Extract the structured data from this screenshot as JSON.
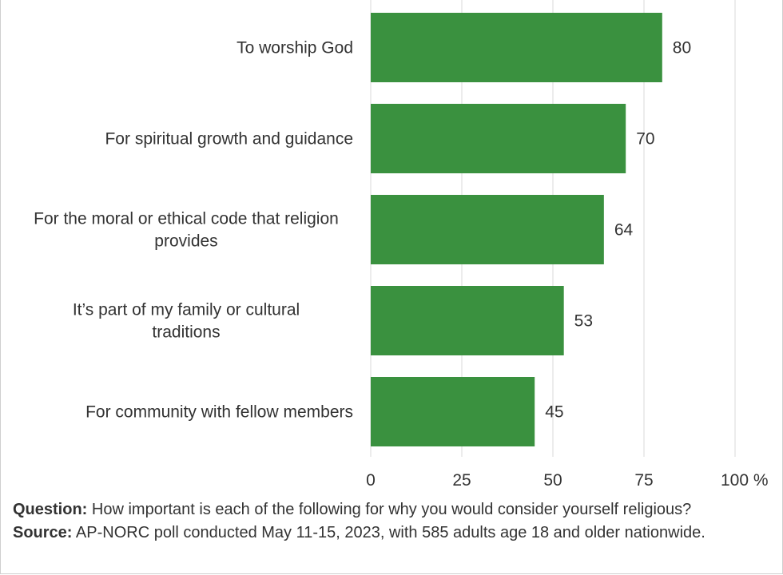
{
  "chart_data": {
    "type": "bar",
    "orientation": "horizontal",
    "categories": [
      "To worship God",
      "For spiritual growth and guidance",
      "For the moral or ethical code that religion provides",
      "It’s part of my family or cultural traditions",
      "For community with fellow members"
    ],
    "values": [
      80,
      70,
      64,
      53,
      45
    ],
    "xlim": [
      0,
      100
    ],
    "xticks": [
      "0",
      "25",
      "50",
      "75",
      "100 %"
    ],
    "xtick_values": [
      0,
      25,
      50,
      75,
      100
    ],
    "grid": true,
    "bar_color": "#3a913f",
    "grid_color": "#d9d9d9"
  },
  "footer": {
    "question_label": "Question:",
    "question_text": "How important is each of the following for why you would consider yourself religious?",
    "source_label": "Source:",
    "source_text": "AP-NORC poll conducted May 11-15, 2023, with 585 adults age 18 and older nationwide."
  }
}
